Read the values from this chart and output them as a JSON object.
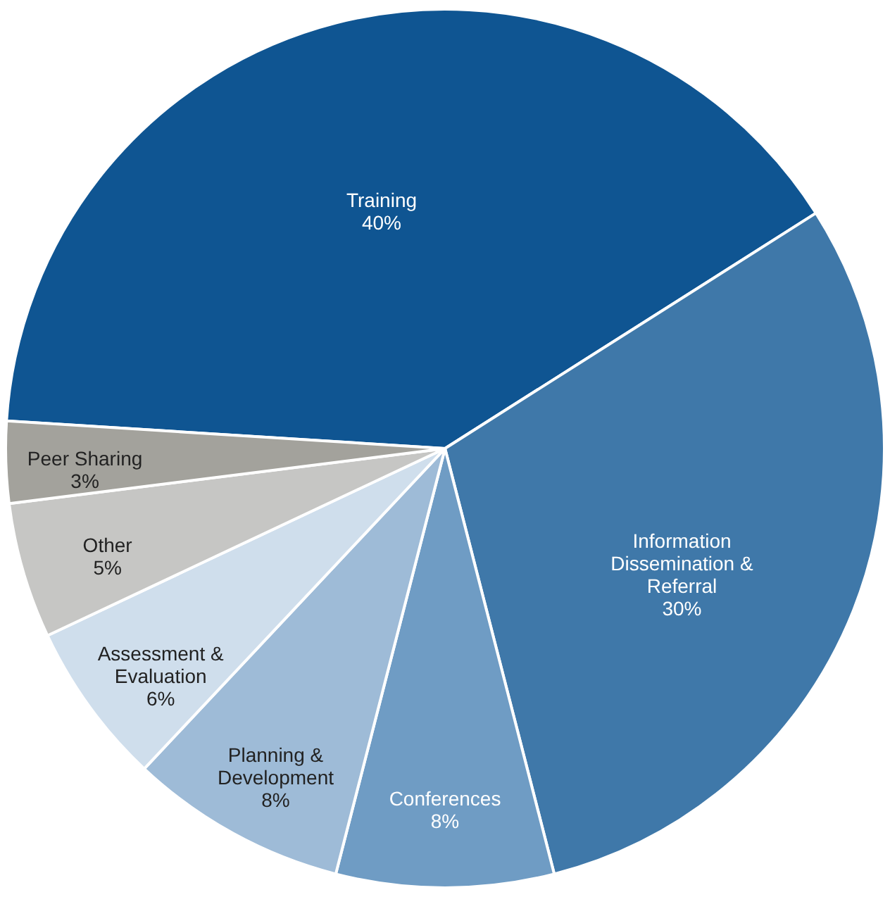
{
  "chart_data": {
    "type": "pie",
    "categories": [
      "Training",
      "Information Dissemination & Referral",
      "Conferences",
      "Planning & Development",
      "Assessment & Evaluation",
      "Other",
      "Peer Sharing"
    ],
    "values": [
      40,
      30,
      8,
      8,
      6,
      5,
      3
    ],
    "value_labels": [
      "40%",
      "30%",
      "8%",
      "8%",
      "6%",
      "5%",
      "3%"
    ],
    "colors": [
      "#0f5592",
      "#3f78a9",
      "#6f9cc4",
      "#9ebbd7",
      "#cfdeec",
      "#c6c6c4",
      "#a3a29c"
    ]
  }
}
